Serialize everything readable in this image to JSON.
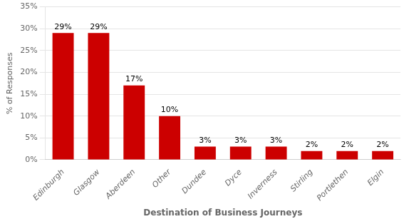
{
  "chart_data": {
    "type": "bar",
    "categories": [
      "Edinburgh",
      "Glasgow",
      "Aberdeen",
      "Other",
      "Dundee",
      "Dyce",
      "Inverness",
      "Stirling",
      "Portlethen",
      "Elgin"
    ],
    "values": [
      29,
      29,
      17,
      10,
      3,
      3,
      3,
      2,
      2,
      2
    ],
    "value_labels": [
      "29%",
      "29%",
      "17%",
      "10%",
      "3%",
      "3%",
      "3%",
      "2%",
      "2%",
      "2%"
    ],
    "color": "#cc0000",
    "xlabel": "Destination of Business Journeys",
    "ylabel": "% of Responses",
    "ylim": [
      0,
      35
    ],
    "yticks": [
      {
        "value": 0,
        "label": "0%"
      },
      {
        "value": 5,
        "label": "5%"
      },
      {
        "value": 10,
        "label": "10%"
      },
      {
        "value": 15,
        "label": "15%"
      },
      {
        "value": 20,
        "label": "20%"
      },
      {
        "value": 25,
        "label": "25%"
      },
      {
        "value": 30,
        "label": "30%"
      },
      {
        "value": 35,
        "label": "35%"
      }
    ],
    "grid": true,
    "data_labels": true
  }
}
